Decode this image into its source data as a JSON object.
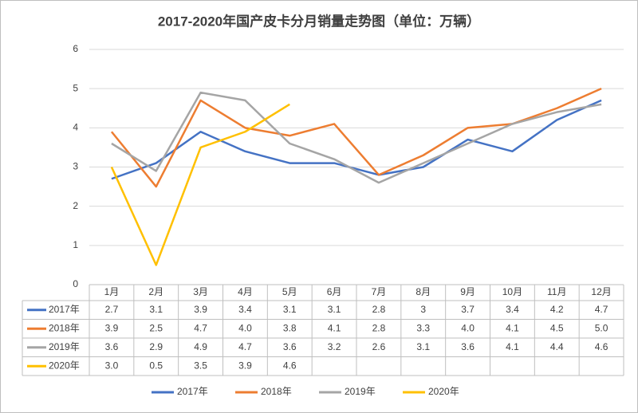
{
  "chart_data": {
    "type": "line",
    "title": "2017-2020年国产皮卡分月销量走势图（单位：万辆）",
    "categories": [
      "1月",
      "2月",
      "3月",
      "4月",
      "5月",
      "6月",
      "7月",
      "8月",
      "9月",
      "10月",
      "11月",
      "12月"
    ],
    "ylim": [
      0,
      6
    ],
    "yticks": [
      0,
      1,
      2,
      3,
      4,
      5,
      6
    ],
    "grid": true,
    "legend": "bottom",
    "series": [
      {
        "name": "2017年",
        "color": "#4472c4",
        "values": [
          2.7,
          3.1,
          3.9,
          3.4,
          3.1,
          3.1,
          2.8,
          3,
          3.7,
          3.4,
          4.2,
          4.7
        ]
      },
      {
        "name": "2018年",
        "color": "#ed7d31",
        "values": [
          3.9,
          2.5,
          4.7,
          4.0,
          3.8,
          4.1,
          2.8,
          3.3,
          4.0,
          4.1,
          4.5,
          5.0
        ],
        "value_labels": [
          "3.9",
          "2.5",
          "4.7",
          "4.0",
          "3.8",
          "4.1",
          "2.8",
          "3.3",
          "4.0",
          "4.1",
          "4.5",
          "5.0"
        ]
      },
      {
        "name": "2019年",
        "color": "#a5a5a5",
        "values": [
          3.6,
          2.9,
          4.9,
          4.7,
          3.6,
          3.2,
          2.6,
          3.1,
          3.6,
          4.1,
          4.4,
          4.6
        ]
      },
      {
        "name": "2020年",
        "color": "#ffc000",
        "values": [
          3.0,
          0.5,
          3.5,
          3.9,
          4.6,
          null,
          null,
          null,
          null,
          null,
          null,
          null
        ],
        "value_labels": [
          "3.0",
          "0.5",
          "3.5",
          "3.9",
          "4.6",
          null,
          null,
          null,
          null,
          null,
          null,
          null
        ]
      }
    ]
  }
}
